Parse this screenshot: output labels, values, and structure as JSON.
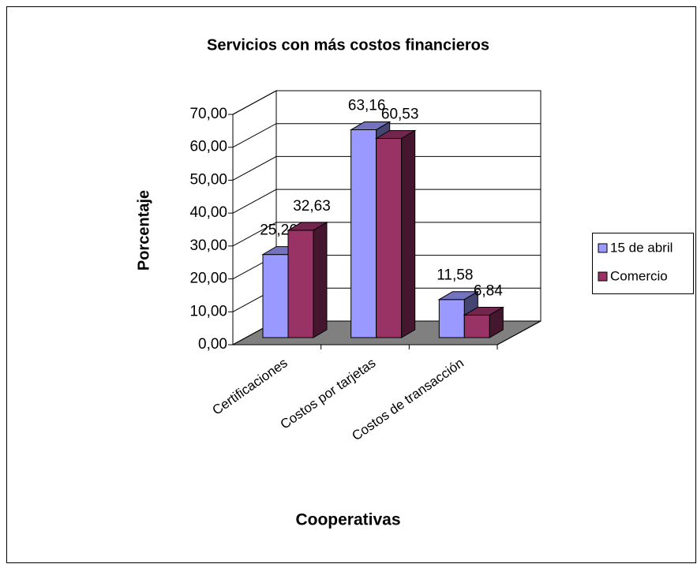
{
  "chart_data": {
    "type": "bar3d",
    "title": "Servicios con más costos financieros",
    "xlabel": "Cooperativas",
    "ylabel": "Porcentaje",
    "categories": [
      "Certificaciones",
      "Costos por tarjetas",
      "Costos de transacción"
    ],
    "series": [
      {
        "name": "15 de abril",
        "color": "#9999ff",
        "values": [
          25.26,
          63.16,
          11.58
        ],
        "value_labels": [
          "25,26",
          "63,16",
          "11,58"
        ]
      },
      {
        "name": "Comercio",
        "color": "#993366",
        "values": [
          32.63,
          60.53,
          6.84
        ],
        "value_labels": [
          "32,63",
          "60,53",
          "6,84"
        ]
      }
    ],
    "ylim": [
      0,
      70
    ],
    "yticks": [
      {
        "value": 0,
        "label": "0,00"
      },
      {
        "value": 10,
        "label": "10,00"
      },
      {
        "value": 20,
        "label": "20,00"
      },
      {
        "value": 30,
        "label": "30,00"
      },
      {
        "value": 40,
        "label": "40,00"
      },
      {
        "value": 50,
        "label": "50,00"
      },
      {
        "value": 60,
        "label": "60,00"
      },
      {
        "value": 70,
        "label": "70,00"
      }
    ],
    "grid": true,
    "legend": "right"
  }
}
